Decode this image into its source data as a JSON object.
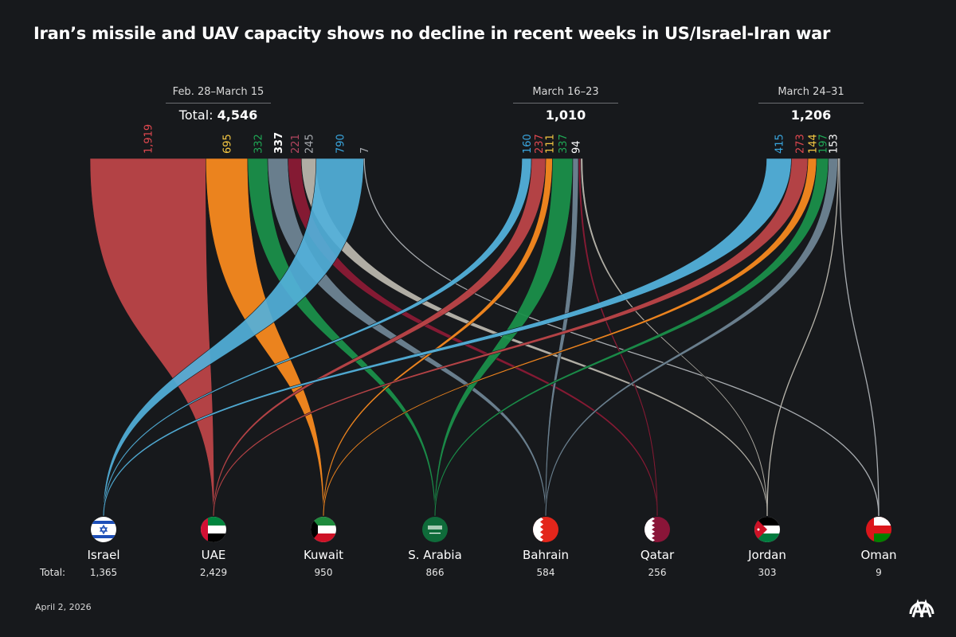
{
  "title": "Iran’s missile and UAV capacity shows no decline in recent weeks in US/Israel-Iran war",
  "date": "April 2, 2026",
  "total_row_label": "Total:",
  "logo": "aa-logo-icon",
  "chart_data": {
    "type": "sankey",
    "title": "Iran’s missile and UAV capacity shows no decline in recent weeks in US/Israel-Iran war",
    "periods": [
      {
        "label": "Feb. 28–March 15",
        "total_prefix": "Total: ",
        "total": "4,546",
        "total_value": 4546
      },
      {
        "label": "March 16–23",
        "total_prefix": "",
        "total": "1,010",
        "total_value": 1010
      },
      {
        "label": "March 24–31",
        "total_prefix": "",
        "total": "1,206",
        "total_value": 1206
      }
    ],
    "countries": [
      {
        "name": "Israel",
        "total": "1,365",
        "color": "#52b0da",
        "label_color": "#3aa7e0"
      },
      {
        "name": "UAE",
        "total": "2,429",
        "color": "#bc4448",
        "label_color": "#e0484f"
      },
      {
        "name": "Kuwait",
        "total": "950",
        "color": "#f7891f",
        "label_color": "#f5c842"
      },
      {
        "name": "S. Arabia",
        "total": "866",
        "color": "#1a8f4a",
        "label_color": "#1fa855"
      },
      {
        "name": "Bahrain",
        "total": "584",
        "color": "#6e8494",
        "label_color": "#ffffff"
      },
      {
        "name": "Qatar",
        "total": "256",
        "color": "#8a1a35",
        "label_color": "#b2455f"
      },
      {
        "name": "Jordan",
        "total": "303",
        "color": "#b8b5ac",
        "label_color": "#a8abb0"
      },
      {
        "name": "Oman",
        "total": "9",
        "color": "#a8acb0",
        "label_color": "#a8abb0"
      }
    ],
    "flows": [
      {
        "period": 0,
        "order": [
          "UAE",
          "Kuwait",
          "S. Arabia",
          "Bahrain",
          "Qatar",
          "Jordan",
          "Israel",
          "Oman"
        ],
        "values": {
          "UAE": 1919,
          "Kuwait": 695,
          "S. Arabia": 332,
          "Bahrain": 337,
          "Qatar": 221,
          "Jordan": 245,
          "Israel": 790,
          "Oman": 7
        },
        "labels": {
          "UAE": "1,919",
          "Kuwait": "695",
          "S. Arabia": "332",
          "Bahrain": "337",
          "Qatar": "221",
          "Jordan": "245",
          "Israel": "790",
          "Oman": "7"
        }
      },
      {
        "period": 1,
        "order": [
          "Israel",
          "UAE",
          "Kuwait",
          "S. Arabia",
          "Bahrain",
          "Qatar",
          "Jordan"
        ],
        "values": {
          "Israel": 160,
          "UAE": 237,
          "Kuwait": 111,
          "S. Arabia": 337,
          "Bahrain": 94,
          "Qatar": 35,
          "Jordan": 36
        },
        "labels": {
          "Israel": "160",
          "UAE": "237",
          "Kuwait": "111",
          "S. Arabia": "337",
          "Bahrain": "94"
        }
      },
      {
        "period": 2,
        "order": [
          "Israel",
          "UAE",
          "Kuwait",
          "S. Arabia",
          "Bahrain",
          "Jordan",
          "Oman"
        ],
        "values": {
          "Israel": 415,
          "UAE": 273,
          "Kuwait": 144,
          "S. Arabia": 197,
          "Bahrain": 153,
          "Jordan": 22,
          "Oman": 2
        },
        "labels": {
          "Israel": "415",
          "UAE": "273",
          "Kuwait": "144",
          "S. Arabia": "197",
          "Bahrain": "153"
        }
      }
    ]
  }
}
